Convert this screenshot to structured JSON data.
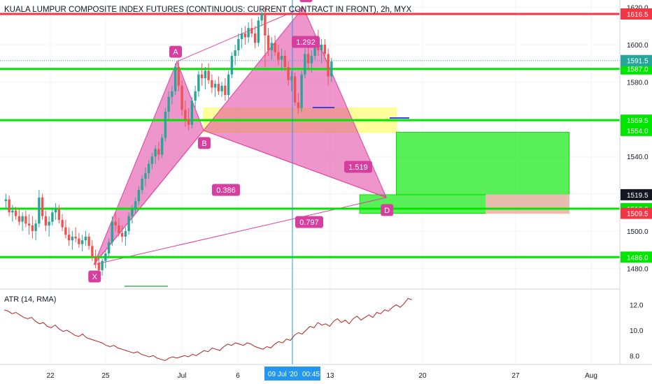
{
  "chart_data": {
    "type": "candlestick",
    "title": "KUALA LUMPUR COMPOSITE INDEX FUTURES (CONTINUOUS: CURRENT CONTRACT IN FRONT), 2h, MYX",
    "x_ticks": [
      "22",
      "25",
      "Jul",
      "6",
      "13",
      "20",
      "27",
      "Aug"
    ],
    "crosshair_date": "09 Jul '20",
    "crosshair_time": "00:45",
    "price_axis_ticks": [
      "1480.0",
      "1500.0",
      "1520.0",
      "1540.0",
      "1580.0",
      "1600.0"
    ],
    "ylim": [
      1470,
      1624
    ],
    "horizontal_levels": [
      {
        "price": 1616.5,
        "label": "1616.5",
        "color": "#f23645"
      },
      {
        "price": 1587.0,
        "label": "1587.0",
        "color": "#00e600"
      },
      {
        "price": 1559.5,
        "label": "1559.5",
        "color": "#00e600"
      },
      {
        "price": 1512.0,
        "label": "1512.0",
        "color": "#00e600"
      },
      {
        "price": 1486.0,
        "label": "1486.0",
        "color": "#00e600"
      }
    ],
    "price_labels": [
      {
        "price": 1591.5,
        "label": "1591.5",
        "color": "#26a69a"
      },
      {
        "price": 1554.0,
        "label": "1554.0",
        "color": "#00e600"
      },
      {
        "price": 1519.5,
        "label": "1519.5",
        "color": "#131722"
      },
      {
        "price": 1509.5,
        "label": "1509.5",
        "color": "#f23645"
      }
    ],
    "candles": [
      {
        "o": 1516,
        "h": 1520,
        "l": 1512,
        "c": 1517
      },
      {
        "o": 1517,
        "h": 1519,
        "l": 1508,
        "c": 1510
      },
      {
        "o": 1510,
        "h": 1514,
        "l": 1505,
        "c": 1511
      },
      {
        "o": 1511,
        "h": 1513,
        "l": 1506,
        "c": 1508
      },
      {
        "o": 1508,
        "h": 1512,
        "l": 1503,
        "c": 1505
      },
      {
        "o": 1505,
        "h": 1510,
        "l": 1500,
        "c": 1508
      },
      {
        "o": 1508,
        "h": 1511,
        "l": 1502,
        "c": 1504
      },
      {
        "o": 1504,
        "h": 1509,
        "l": 1498,
        "c": 1503
      },
      {
        "o": 1503,
        "h": 1508,
        "l": 1496,
        "c": 1500
      },
      {
        "o": 1500,
        "h": 1506,
        "l": 1495,
        "c": 1504
      },
      {
        "o": 1504,
        "h": 1522,
        "l": 1502,
        "c": 1518
      },
      {
        "o": 1518,
        "h": 1520,
        "l": 1506,
        "c": 1508
      },
      {
        "o": 1508,
        "h": 1511,
        "l": 1500,
        "c": 1503
      },
      {
        "o": 1503,
        "h": 1508,
        "l": 1497,
        "c": 1505
      },
      {
        "o": 1505,
        "h": 1512,
        "l": 1503,
        "c": 1510
      },
      {
        "o": 1510,
        "h": 1515,
        "l": 1506,
        "c": 1512
      },
      {
        "o": 1512,
        "h": 1514,
        "l": 1504,
        "c": 1506
      },
      {
        "o": 1506,
        "h": 1509,
        "l": 1500,
        "c": 1502
      },
      {
        "o": 1502,
        "h": 1506,
        "l": 1496,
        "c": 1498
      },
      {
        "o": 1498,
        "h": 1502,
        "l": 1492,
        "c": 1495
      },
      {
        "o": 1495,
        "h": 1500,
        "l": 1490,
        "c": 1497
      },
      {
        "o": 1497,
        "h": 1502,
        "l": 1494,
        "c": 1496
      },
      {
        "o": 1496,
        "h": 1499,
        "l": 1491,
        "c": 1493
      },
      {
        "o": 1493,
        "h": 1498,
        "l": 1489,
        "c": 1495
      },
      {
        "o": 1495,
        "h": 1500,
        "l": 1492,
        "c": 1497
      },
      {
        "o": 1497,
        "h": 1499,
        "l": 1490,
        "c": 1492
      },
      {
        "o": 1492,
        "h": 1495,
        "l": 1484,
        "c": 1486
      },
      {
        "o": 1486,
        "h": 1490,
        "l": 1480,
        "c": 1483
      },
      {
        "o": 1483,
        "h": 1487,
        "l": 1477,
        "c": 1479
      },
      {
        "o": 1479,
        "h": 1485,
        "l": 1476,
        "c": 1484
      },
      {
        "o": 1484,
        "h": 1490,
        "l": 1480,
        "c": 1488
      },
      {
        "o": 1488,
        "h": 1496,
        "l": 1486,
        "c": 1494
      },
      {
        "o": 1494,
        "h": 1508,
        "l": 1492,
        "c": 1505
      },
      {
        "o": 1505,
        "h": 1510,
        "l": 1500,
        "c": 1503
      },
      {
        "o": 1503,
        "h": 1507,
        "l": 1497,
        "c": 1499
      },
      {
        "o": 1499,
        "h": 1503,
        "l": 1494,
        "c": 1497
      },
      {
        "o": 1497,
        "h": 1502,
        "l": 1492,
        "c": 1500
      },
      {
        "o": 1500,
        "h": 1510,
        "l": 1498,
        "c": 1508
      },
      {
        "o": 1508,
        "h": 1514,
        "l": 1504,
        "c": 1512
      },
      {
        "o": 1512,
        "h": 1518,
        "l": 1509,
        "c": 1516
      },
      {
        "o": 1516,
        "h": 1524,
        "l": 1514,
        "c": 1522
      },
      {
        "o": 1522,
        "h": 1530,
        "l": 1520,
        "c": 1528
      },
      {
        "o": 1528,
        "h": 1534,
        "l": 1524,
        "c": 1531
      },
      {
        "o": 1531,
        "h": 1538,
        "l": 1528,
        "c": 1536
      },
      {
        "o": 1536,
        "h": 1542,
        "l": 1533,
        "c": 1540
      },
      {
        "o": 1540,
        "h": 1546,
        "l": 1536,
        "c": 1544
      },
      {
        "o": 1544,
        "h": 1548,
        "l": 1538,
        "c": 1541
      },
      {
        "o": 1541,
        "h": 1552,
        "l": 1539,
        "c": 1550
      },
      {
        "o": 1550,
        "h": 1566,
        "l": 1548,
        "c": 1564
      },
      {
        "o": 1564,
        "h": 1575,
        "l": 1560,
        "c": 1572
      },
      {
        "o": 1572,
        "h": 1578,
        "l": 1568,
        "c": 1575
      },
      {
        "o": 1575,
        "h": 1590,
        "l": 1573,
        "c": 1588
      },
      {
        "o": 1588,
        "h": 1592,
        "l": 1575,
        "c": 1578
      },
      {
        "o": 1578,
        "h": 1581,
        "l": 1562,
        "c": 1565
      },
      {
        "o": 1565,
        "h": 1570,
        "l": 1556,
        "c": 1560
      },
      {
        "o": 1560,
        "h": 1566,
        "l": 1554,
        "c": 1557
      },
      {
        "o": 1557,
        "h": 1572,
        "l": 1555,
        "c": 1570
      },
      {
        "o": 1570,
        "h": 1578,
        "l": 1566,
        "c": 1575
      },
      {
        "o": 1575,
        "h": 1586,
        "l": 1572,
        "c": 1584
      },
      {
        "o": 1584,
        "h": 1590,
        "l": 1578,
        "c": 1582
      },
      {
        "o": 1582,
        "h": 1588,
        "l": 1576,
        "c": 1586
      },
      {
        "o": 1586,
        "h": 1590,
        "l": 1579,
        "c": 1581
      },
      {
        "o": 1581,
        "h": 1584,
        "l": 1574,
        "c": 1577
      },
      {
        "o": 1577,
        "h": 1581,
        "l": 1572,
        "c": 1579
      },
      {
        "o": 1579,
        "h": 1583,
        "l": 1573,
        "c": 1575
      },
      {
        "o": 1575,
        "h": 1580,
        "l": 1572,
        "c": 1578
      },
      {
        "o": 1578,
        "h": 1582,
        "l": 1570,
        "c": 1573
      },
      {
        "o": 1573,
        "h": 1586,
        "l": 1571,
        "c": 1584
      },
      {
        "o": 1584,
        "h": 1596,
        "l": 1582,
        "c": 1594
      },
      {
        "o": 1594,
        "h": 1600,
        "l": 1589,
        "c": 1597
      },
      {
        "o": 1597,
        "h": 1606,
        "l": 1594,
        "c": 1603
      },
      {
        "o": 1603,
        "h": 1609,
        "l": 1598,
        "c": 1606
      },
      {
        "o": 1606,
        "h": 1610,
        "l": 1600,
        "c": 1604
      },
      {
        "o": 1604,
        "h": 1612,
        "l": 1601,
        "c": 1609
      },
      {
        "o": 1609,
        "h": 1614,
        "l": 1604,
        "c": 1606
      },
      {
        "o": 1606,
        "h": 1610,
        "l": 1598,
        "c": 1601
      },
      {
        "o": 1601,
        "h": 1615,
        "l": 1599,
        "c": 1613
      },
      {
        "o": 1613,
        "h": 1619,
        "l": 1610,
        "c": 1617
      },
      {
        "o": 1617,
        "h": 1620,
        "l": 1588,
        "c": 1605
      },
      {
        "o": 1605,
        "h": 1609,
        "l": 1594,
        "c": 1597
      },
      {
        "o": 1597,
        "h": 1604,
        "l": 1592,
        "c": 1601
      },
      {
        "o": 1601,
        "h": 1605,
        "l": 1594,
        "c": 1596
      },
      {
        "o": 1596,
        "h": 1600,
        "l": 1589,
        "c": 1592
      },
      {
        "o": 1592,
        "h": 1598,
        "l": 1586,
        "c": 1594
      },
      {
        "o": 1594,
        "h": 1597,
        "l": 1586,
        "c": 1588
      },
      {
        "o": 1588,
        "h": 1591,
        "l": 1578,
        "c": 1581
      },
      {
        "o": 1581,
        "h": 1586,
        "l": 1575,
        "c": 1583
      },
      {
        "o": 1583,
        "h": 1585,
        "l": 1567,
        "c": 1569
      },
      {
        "o": 1569,
        "h": 1574,
        "l": 1563,
        "c": 1566
      },
      {
        "o": 1566,
        "h": 1586,
        "l": 1564,
        "c": 1584
      },
      {
        "o": 1584,
        "h": 1598,
        "l": 1582,
        "c": 1595
      },
      {
        "o": 1595,
        "h": 1600,
        "l": 1586,
        "c": 1590
      },
      {
        "o": 1590,
        "h": 1597,
        "l": 1585,
        "c": 1594
      },
      {
        "o": 1594,
        "h": 1605,
        "l": 1592,
        "c": 1602
      },
      {
        "o": 1602,
        "h": 1608,
        "l": 1594,
        "c": 1597
      },
      {
        "o": 1597,
        "h": 1603,
        "l": 1590,
        "c": 1600
      },
      {
        "o": 1600,
        "h": 1603,
        "l": 1592,
        "c": 1595
      },
      {
        "o": 1595,
        "h": 1598,
        "l": 1578,
        "c": 1583
      },
      {
        "o": 1583,
        "h": 1593,
        "l": 1580,
        "c": 1591
      }
    ],
    "harmonic_pattern": {
      "points": [
        {
          "label": "X",
          "bar": 27,
          "price": 1482
        },
        {
          "label": "A",
          "bar": 52,
          "price": 1591
        },
        {
          "label": "B",
          "bar": 60,
          "price": 1554
        },
        {
          "label": "C",
          "bar": 90,
          "price": 1620
        },
        {
          "label": "D",
          "bar": 115,
          "price": 1518
        }
      ],
      "ratios": [
        "0.386",
        "1.292",
        "1.519",
        "0.797"
      ],
      "fill_color": "#e040a0"
    },
    "zones": [
      {
        "name": "reversal-box-yellow",
        "from_bar": 60,
        "to_bar": 118,
        "top": 1566,
        "bottom": 1553,
        "color": "#ffff66"
      },
      {
        "name": "target-green",
        "from_bar": 118,
        "to_bar": 170,
        "top": 1553,
        "bottom": 1519.5,
        "color": "#00e600"
      },
      {
        "name": "entry-box",
        "from_bar": 107,
        "to_bar": 170,
        "top": 1519.5,
        "bottom": 1509.5,
        "color": "#00e600"
      },
      {
        "name": "stop-box",
        "from_bar": 145,
        "to_bar": 170,
        "top": 1519.5,
        "bottom": 1509.5,
        "color": "#f7b7b7"
      }
    ],
    "atr": {
      "label": "ATR (14, RMA)",
      "ylim": [
        7.3,
        12.8
      ],
      "ticks": [
        "8.0",
        "10.0",
        "12.0"
      ],
      "color": "#b22222",
      "values": [
        11.6,
        11.5,
        11.3,
        11.4,
        11.2,
        11.0,
        10.9,
        11.0,
        10.7,
        10.5,
        10.6,
        10.3,
        10.2,
        10.4,
        10.1,
        9.9,
        10.0,
        9.8,
        9.6,
        9.5,
        9.7,
        9.4,
        9.3,
        9.2,
        9.1,
        9.0,
        8.8,
        8.7,
        8.8,
        8.6,
        8.5,
        8.4,
        8.3,
        8.2,
        8.3,
        8.1,
        8.0,
        7.9,
        8.0,
        7.8,
        7.7,
        7.6,
        7.8,
        7.9,
        7.8,
        7.9,
        8.0,
        7.9,
        8.1,
        8.0,
        8.2,
        8.4,
        8.3,
        8.6,
        8.5,
        8.4,
        8.7,
        8.9,
        8.8,
        9.0,
        8.9,
        8.8,
        9.0,
        8.9,
        8.7,
        8.6,
        8.5,
        8.7,
        8.6,
        8.9,
        9.1,
        9.0,
        9.3,
        9.2,
        9.6,
        9.8,
        9.7,
        10.0,
        10.3,
        10.2,
        10.6,
        10.4,
        10.5,
        10.3,
        10.7,
        10.9,
        10.6,
        10.8,
        10.5,
        10.9,
        11.1,
        10.8,
        11.0,
        11.2,
        11.0,
        11.4,
        11.3,
        11.6,
        11.5,
        11.8,
        12.0,
        11.8,
        12.1,
        12.5,
        12.4
      ]
    }
  }
}
